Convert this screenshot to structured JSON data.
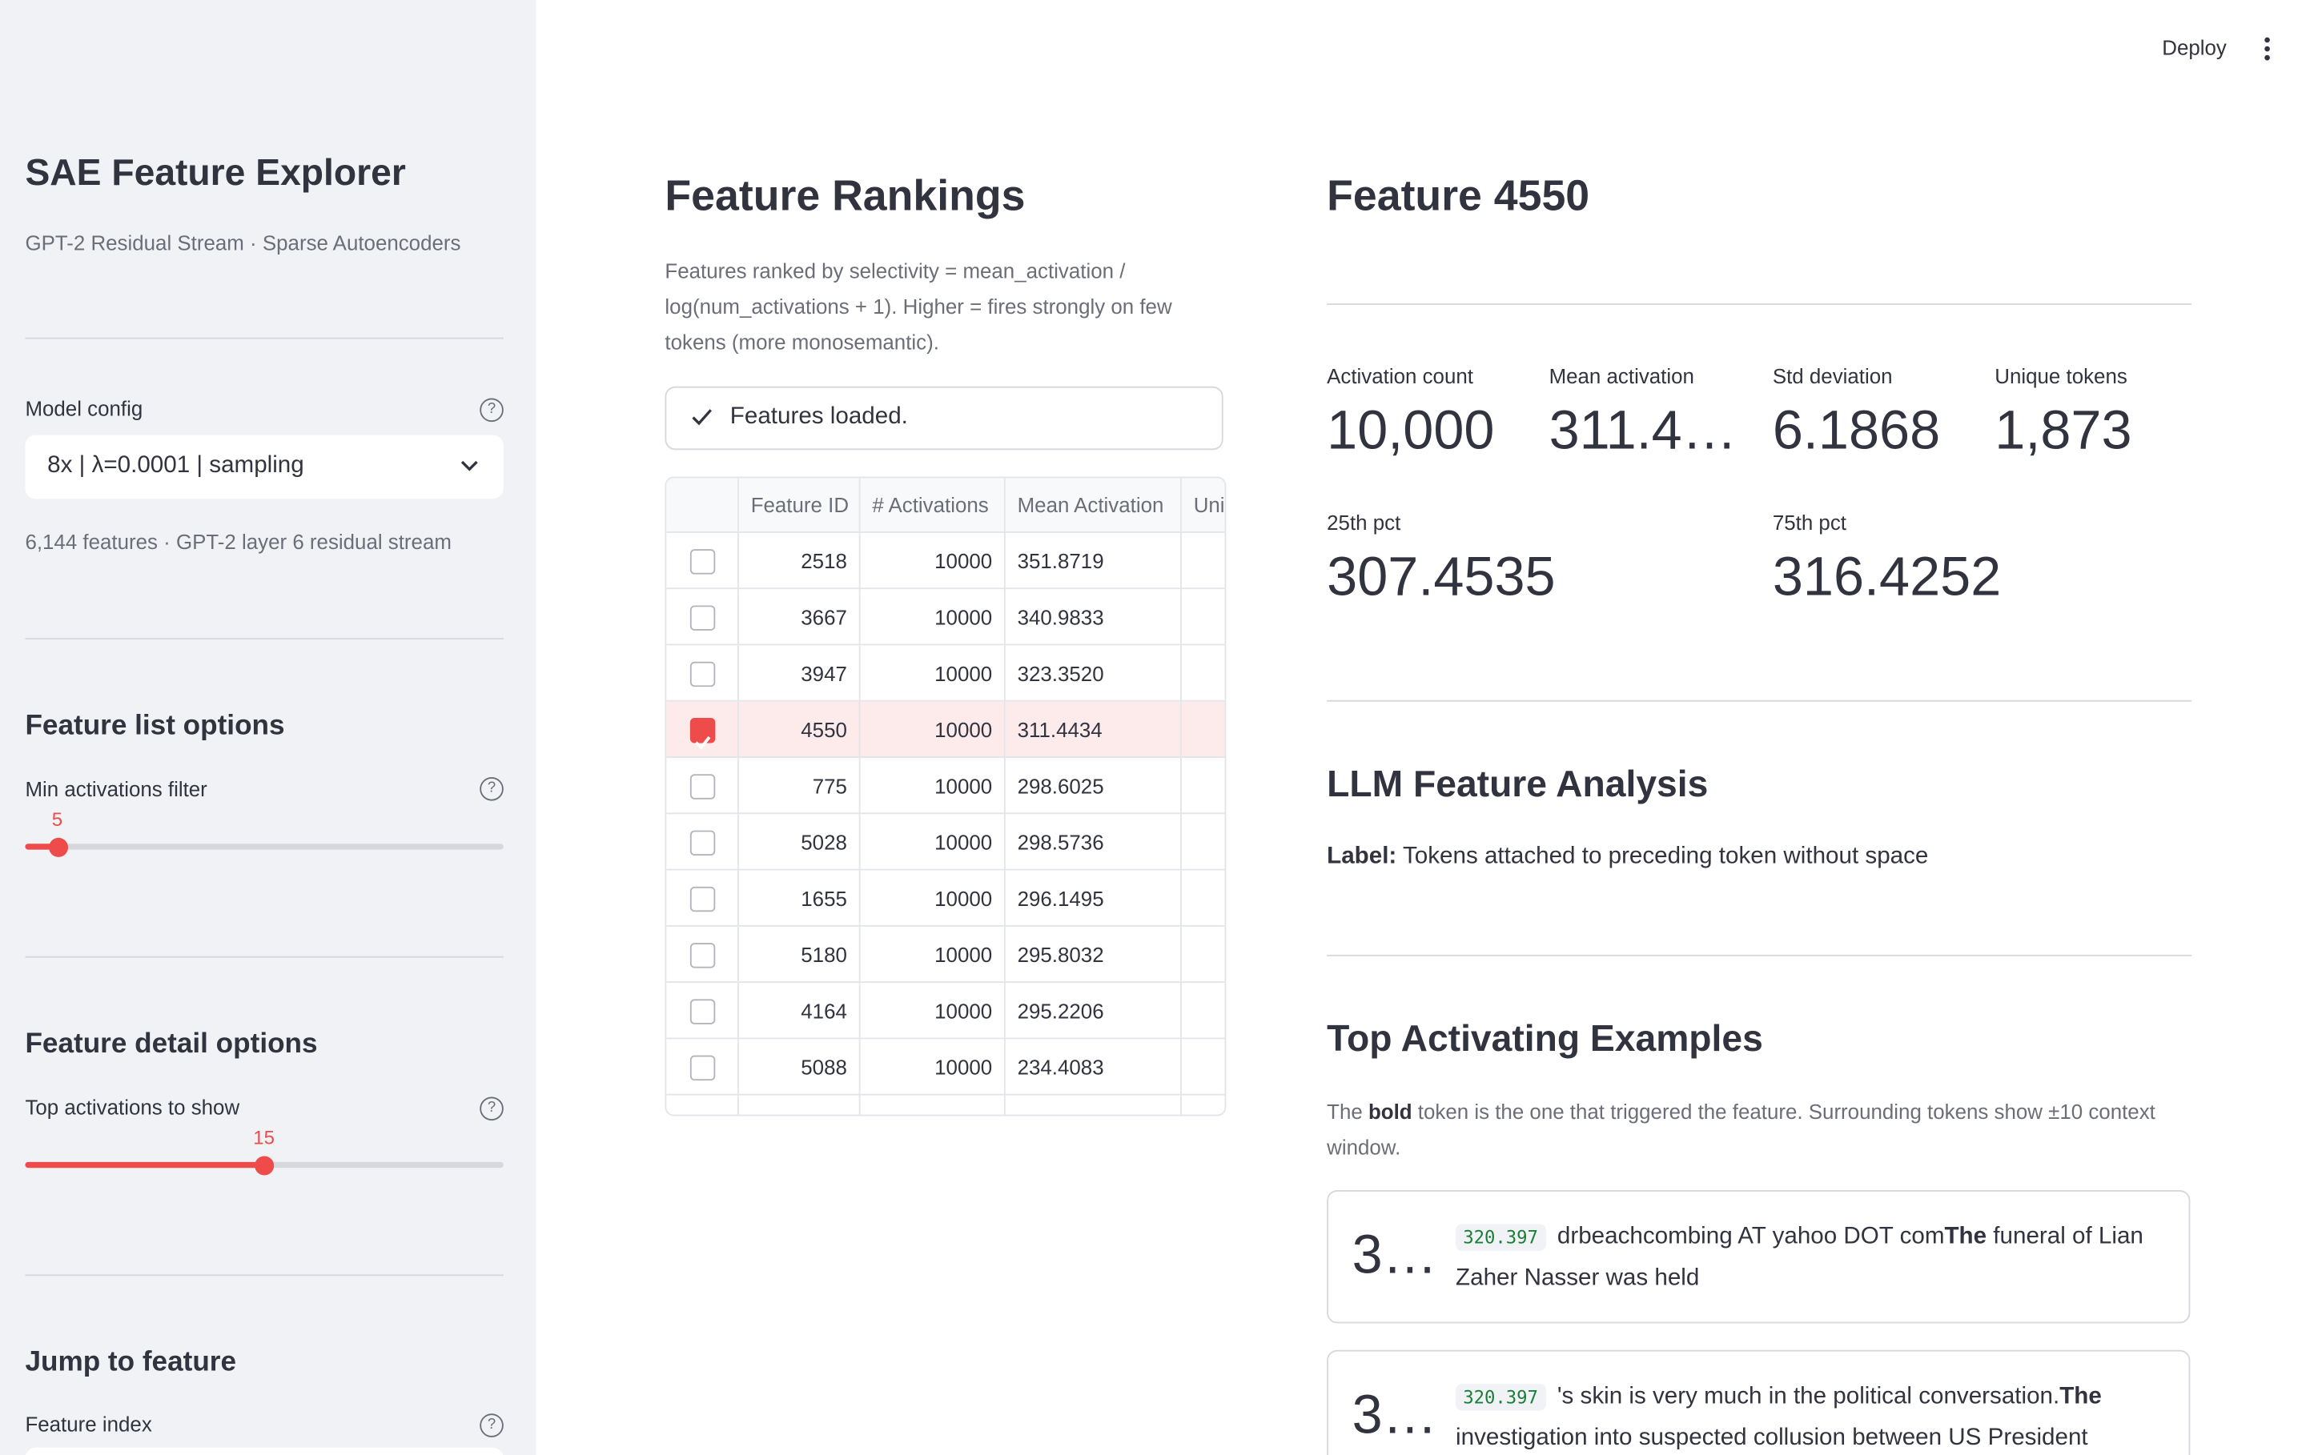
{
  "header": {
    "deploy": "Deploy"
  },
  "sidebar": {
    "title": "SAE Feature Explorer",
    "subtitle": "GPT-2 Residual Stream · Sparse Autoencoders",
    "model_config": {
      "label": "Model config",
      "value": "8x | λ=0.0001 | sampling",
      "caption": "6,144 features · GPT-2 layer 6 residual stream"
    },
    "feature_list": {
      "heading": "Feature list options",
      "slider_label": "Min activations filter",
      "slider_value": 5
    },
    "feature_detail": {
      "heading": "Feature detail options",
      "slider_label": "Top activations to show",
      "slider_value": 15
    },
    "jump": {
      "heading": "Jump to feature",
      "input_label": "Feature index"
    }
  },
  "rankings": {
    "title": "Feature Rankings",
    "description": "Features ranked by selectivity = mean_activation / log(num_activations + 1). Higher = fires strongly on few tokens (more monosemantic).",
    "status": "Features loaded.",
    "table": {
      "columns": [
        "Feature ID",
        "# Activations",
        "Mean Activation",
        "Uni"
      ],
      "rows": [
        {
          "checked": false,
          "cells": [
            "2518",
            "10000",
            "351.8719"
          ]
        },
        {
          "checked": false,
          "cells": [
            "3667",
            "10000",
            "340.9833"
          ]
        },
        {
          "checked": false,
          "cells": [
            "3947",
            "10000",
            "323.3520"
          ]
        },
        {
          "checked": true,
          "cells": [
            "4550",
            "10000",
            "311.4434"
          ]
        },
        {
          "checked": false,
          "cells": [
            "775",
            "10000",
            "298.6025"
          ]
        },
        {
          "checked": false,
          "cells": [
            "5028",
            "10000",
            "298.5736"
          ]
        },
        {
          "checked": false,
          "cells": [
            "1655",
            "10000",
            "296.1495"
          ]
        },
        {
          "checked": false,
          "cells": [
            "5180",
            "10000",
            "295.8032"
          ]
        },
        {
          "checked": false,
          "cells": [
            "4164",
            "10000",
            "295.2206"
          ]
        },
        {
          "checked": false,
          "cells": [
            "5088",
            "10000",
            "234.4083"
          ]
        }
      ]
    }
  },
  "feature": {
    "title": "Feature 4550",
    "metrics": [
      {
        "label": "Activation count",
        "value": "10,000"
      },
      {
        "label": "Mean activation",
        "value": "311.4…"
      },
      {
        "label": "Std deviation",
        "value": "6.1868"
      },
      {
        "label": "Unique tokens",
        "value": "1,873"
      },
      {
        "label": "25th pct",
        "value": "307.4535"
      },
      {
        "label": "75th pct",
        "value": "316.4252"
      }
    ],
    "analysis": {
      "heading": "LLM Feature Analysis",
      "label_key": "Label:",
      "label_text": "Tokens attached to preceding token without space"
    },
    "examples": {
      "heading": "Top Activating Examples",
      "caption_parts": [
        "The ",
        "bold",
        " token is the one that triggered the feature. Surrounding tokens show ±10 context window."
      ],
      "items": [
        {
          "rank": "3…",
          "score": "320.397",
          "before": "drbeachcombing AT yahoo DOT com",
          "token": "The",
          "after": " funeral of Lian Zaher Nasser was held"
        },
        {
          "rank": "3…",
          "score": "320.397",
          "before": "'s skin is very much in the political conversation.",
          "token": "The",
          "after": " investigation into suspected collusion between US President"
        }
      ]
    }
  }
}
